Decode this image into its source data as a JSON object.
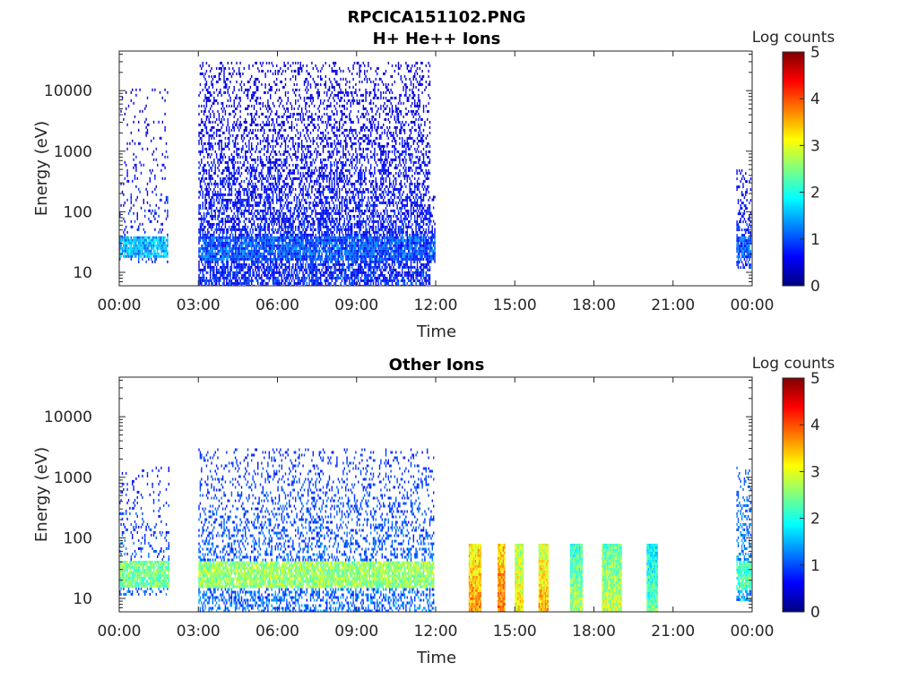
{
  "figure_title": "RPCICA151102.PNG",
  "colors": {
    "axis": "#262626",
    "background": "#ffffff",
    "colormap": [
      "#00007f",
      "#0000ff",
      "#007fff",
      "#00ffff",
      "#7fff7f",
      "#ffff00",
      "#ff7f00",
      "#ff0000",
      "#7f0000"
    ]
  },
  "chart_data": [
    {
      "type": "heatmap",
      "title": "H+ He++ Ions",
      "xlabel": "Time",
      "ylabel": "Energy (eV)",
      "x_ticks": [
        "00:00",
        "03:00",
        "06:00",
        "09:00",
        "12:00",
        "15:00",
        "18:00",
        "21:00",
        "00:00"
      ],
      "xlim_hours": [
        0,
        24
      ],
      "y_scale": "log",
      "ylim": [
        6,
        45000
      ],
      "y_ticks": [
        10,
        100,
        1000,
        10000
      ],
      "y_tick_labels": [
        "10",
        "100",
        "1000",
        "10000"
      ],
      "colorbar": {
        "label": "Log counts",
        "range": [
          0,
          5
        ],
        "ticks": [
          "0",
          "1",
          "2",
          "3",
          "4",
          "5"
        ]
      },
      "blocks": [
        {
          "start_h": 0.0,
          "end_h": 1.85,
          "min_ev": 15,
          "max_ev": 12000,
          "low_band": [
            18,
            42
          ],
          "band_level": 1.5,
          "sparse_level": 0.3,
          "density": 0.15
        },
        {
          "start_h": 3.0,
          "end_h": 11.8,
          "min_ev": 6,
          "max_ev": 30000,
          "low_band": [
            17,
            43
          ],
          "band_level": 1.0,
          "sparse_level": 0.3,
          "density": 0.7
        },
        {
          "start_h": 11.8,
          "end_h": 11.95,
          "min_ev": 15,
          "max_ev": 250,
          "low_band": [
            17,
            43
          ],
          "band_level": 1.0,
          "sparse_level": 0.3,
          "density": 0.5
        },
        {
          "start_h": 23.4,
          "end_h": 23.95,
          "min_ev": 12,
          "max_ev": 500,
          "low_band": [
            18,
            42
          ],
          "band_level": 1.0,
          "sparse_level": 0.4,
          "density": 0.5
        }
      ]
    },
    {
      "type": "heatmap",
      "title": "Other Ions",
      "xlabel": "Time",
      "ylabel": "Energy (eV)",
      "x_ticks": [
        "00:00",
        "03:00",
        "06:00",
        "09:00",
        "12:00",
        "15:00",
        "18:00",
        "21:00",
        "00:00"
      ],
      "xlim_hours": [
        0,
        24
      ],
      "y_scale": "log",
      "ylim": [
        6,
        45000
      ],
      "y_ticks": [
        10,
        100,
        1000,
        10000
      ],
      "y_tick_labels": [
        "10",
        "100",
        "1000",
        "10000"
      ],
      "colorbar": {
        "label": "Log counts",
        "range": [
          0,
          5
        ],
        "ticks": [
          "0",
          "1",
          "2",
          "3",
          "4",
          "5"
        ]
      },
      "blocks": [
        {
          "start_h": 0.0,
          "end_h": 1.9,
          "min_ev": 12,
          "max_ev": 1500,
          "low_band": [
            16,
            45
          ],
          "band_level": 2.4,
          "sparse_level": 0.6,
          "density": 0.25
        },
        {
          "start_h": 3.0,
          "end_h": 11.9,
          "min_ev": 6,
          "max_ev": 3000,
          "low_band": [
            15,
            45
          ],
          "band_level": 2.6,
          "sparse_level": 0.7,
          "density": 0.45
        },
        {
          "start_h": 23.4,
          "end_h": 23.95,
          "min_ev": 10,
          "max_ev": 1500,
          "low_band": [
            15,
            45
          ],
          "band_level": 2.2,
          "sparse_level": 0.9,
          "density": 0.6
        }
      ],
      "bursts": [
        {
          "start_h": 13.25,
          "end_h": 13.7,
          "min_ev": 6,
          "max_ev": 80,
          "level": 3.4
        },
        {
          "start_h": 14.35,
          "end_h": 14.6,
          "min_ev": 6,
          "max_ev": 80,
          "level": 3.6
        },
        {
          "start_h": 15.0,
          "end_h": 15.3,
          "min_ev": 6,
          "max_ev": 80,
          "level": 3.0
        },
        {
          "start_h": 15.9,
          "end_h": 16.25,
          "min_ev": 6,
          "max_ev": 80,
          "level": 3.2
        },
        {
          "start_h": 17.1,
          "end_h": 17.55,
          "min_ev": 6,
          "max_ev": 80,
          "level": 2.4
        },
        {
          "start_h": 18.3,
          "end_h": 19.05,
          "min_ev": 6,
          "max_ev": 80,
          "level": 2.6
        },
        {
          "start_h": 20.0,
          "end_h": 20.4,
          "min_ev": 6,
          "max_ev": 80,
          "level": 2.1
        }
      ]
    }
  ]
}
